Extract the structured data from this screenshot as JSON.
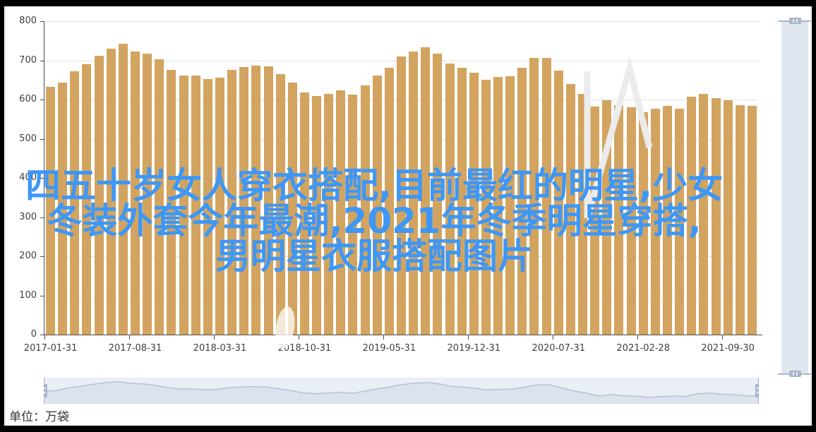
{
  "title": {
    "full": "四五十岁女人穿衣搭配,目前最红的明星,少女冬装外套今年最潮,2021年冬季明星穿搭,男明星衣服搭配图片",
    "lines": [
      "四五十岁女人穿衣搭配,目前最红的明星,少女",
      "冬装外套今年最潮,2021年冬季明星穿搭,",
      "男明星衣服搭配图片"
    ],
    "color": "#3e97f5"
  },
  "unit_label": "单位：万袋",
  "chart_data": {
    "type": "bar",
    "title": "",
    "xlabel": "",
    "ylabel": "单位：万袋",
    "ylim": [
      0,
      800
    ],
    "y_tick_labels": [
      "0",
      "100",
      "200",
      "300",
      "400",
      "500",
      "600",
      "700",
      "800"
    ],
    "x_tick_labels": [
      "2017-01-31",
      "2017-08-31",
      "2018-03-31",
      "2018-10-31",
      "2019-05-31",
      "2019-12-31",
      "2020-07-31",
      "2021-02-28",
      "2021-09-30"
    ],
    "x_label_every": 7,
    "grid": true,
    "legend": false,
    "bar_color": "#d2a45f",
    "x": [
      "2017-01-31",
      "2017-02-28",
      "2017-03-31",
      "2017-04-30",
      "2017-05-31",
      "2017-06-30",
      "2017-07-31",
      "2017-08-31",
      "2017-09-30",
      "2017-10-31",
      "2017-11-30",
      "2017-12-31",
      "2018-01-31",
      "2018-02-28",
      "2018-03-31",
      "2018-04-30",
      "2018-05-31",
      "2018-06-30",
      "2018-07-31",
      "2018-08-31",
      "2018-09-30",
      "2018-10-31",
      "2018-11-30",
      "2018-12-31",
      "2019-01-31",
      "2019-02-28",
      "2019-03-31",
      "2019-04-30",
      "2019-05-31",
      "2019-06-30",
      "2019-07-31",
      "2019-08-31",
      "2019-09-30",
      "2019-10-31",
      "2019-11-30",
      "2019-12-31",
      "2020-01-31",
      "2020-02-29",
      "2020-03-31",
      "2020-04-30",
      "2020-05-31",
      "2020-06-30",
      "2020-07-31",
      "2020-08-31",
      "2020-09-30",
      "2020-10-31",
      "2020-11-30",
      "2020-12-31",
      "2021-01-31",
      "2021-02-28",
      "2021-03-31",
      "2021-04-30",
      "2021-05-31",
      "2021-06-30",
      "2021-07-31",
      "2021-08-31",
      "2021-09-30",
      "2021-10-31",
      "2021-11-30"
    ],
    "values": [
      633,
      644,
      673,
      690,
      712,
      730,
      742,
      723,
      718,
      702,
      676,
      662,
      661,
      652,
      655,
      675,
      683,
      687,
      684,
      665,
      644,
      618,
      609,
      614,
      624,
      612,
      636,
      661,
      681,
      710,
      723,
      734,
      718,
      692,
      682,
      668,
      650,
      657,
      660,
      681,
      707,
      707,
      674,
      639,
      615,
      582,
      599,
      586,
      580,
      567,
      576,
      583,
      577,
      607,
      615,
      603,
      598,
      585,
      583
    ]
  },
  "colors": {
    "bar": "#d2a45f",
    "title_text": "#3e97f5",
    "gridline": "#e2e2e2",
    "axis": "#4d4d4d",
    "axis_label": "#3f3f3f",
    "navigator_track": "#eaeef5",
    "navigator_area": "#dce3ee",
    "navigator_line": "#b6c1d4",
    "slider_handle": "#a9b6c9",
    "vslider_track": "#e1e7f0",
    "background": "#ffffff",
    "frame": "#000000"
  }
}
